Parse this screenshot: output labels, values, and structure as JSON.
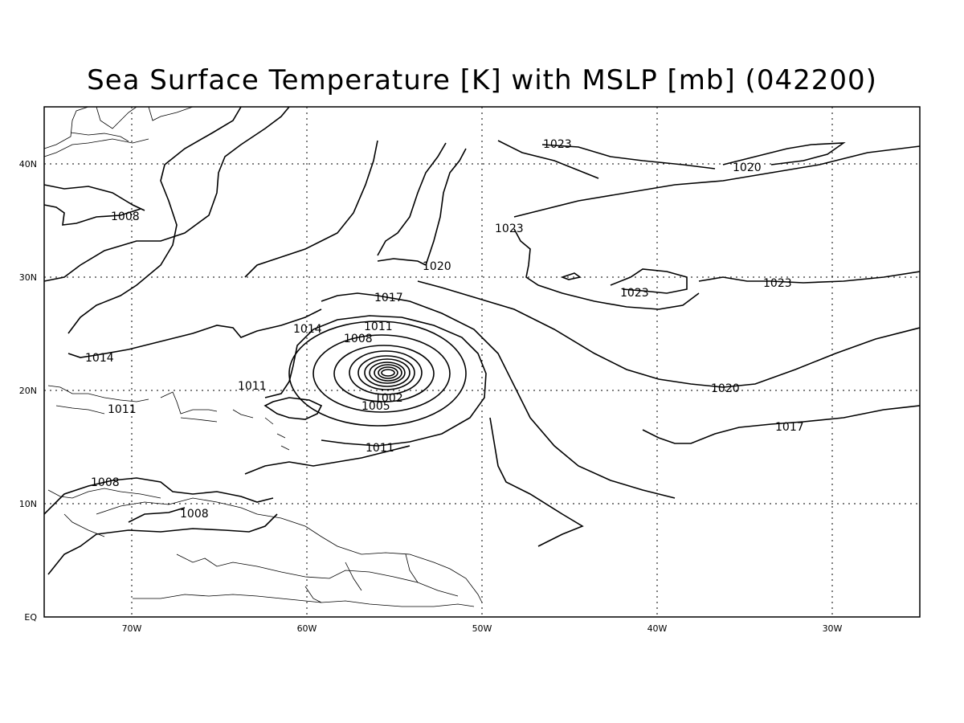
{
  "title": "Sea Surface Temperature [K] with MSLP [mb] (042200)",
  "axes": {
    "x_ticks": [
      "70W",
      "60W",
      "50W",
      "40W",
      "30W"
    ],
    "y_ticks": [
      "EQ",
      "10N",
      "20N",
      "30N",
      "40N"
    ]
  },
  "contour_labels": [
    "1023",
    "1020",
    "1008",
    "1023",
    "1020",
    "1023",
    "1023",
    "1017",
    "1014",
    "1011",
    "1008",
    "1014",
    "1011",
    "1011",
    "1020",
    "1017",
    "1005",
    "1002",
    "1011",
    "1008",
    "1008"
  ],
  "map_data": {
    "projection": "latlon",
    "lon_range": [
      -75,
      -25
    ],
    "lat_range": [
      0,
      45
    ],
    "variable": "MSLP",
    "units": "mb",
    "contour_interval": 3,
    "low_center": {
      "lon": -55.5,
      "lat": 21.5
    }
  }
}
